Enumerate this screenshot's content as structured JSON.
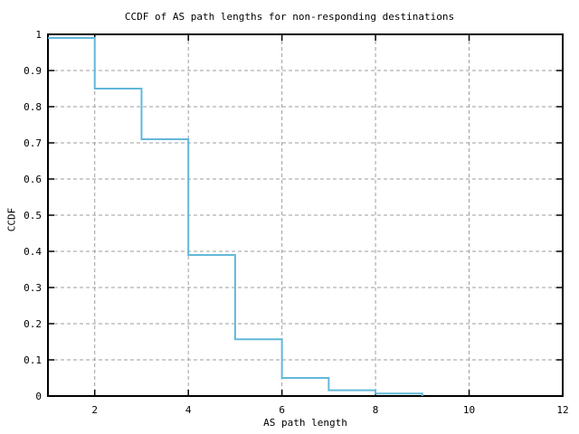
{
  "page": {
    "background_color": "#ffffff",
    "text_color": "#000000"
  },
  "chart_data": {
    "type": "line",
    "subtype": "step-ccdf",
    "title": "CCDF of AS path lengths for non-responding destinations",
    "xlabel": "AS path length",
    "ylabel": "CCDF",
    "xlim": [
      1,
      12
    ],
    "ylim": [
      0,
      1
    ],
    "xticks": [
      2,
      4,
      6,
      8,
      10,
      12
    ],
    "xtick_labels": [
      "2",
      "4",
      "6",
      "8",
      "10",
      "12"
    ],
    "yticks": [
      0,
      0.1,
      0.2,
      0.3,
      0.4,
      0.5,
      0.6,
      0.7,
      0.8,
      0.9,
      1
    ],
    "ytick_labels": [
      "0",
      "0.1",
      "0.2",
      "0.3",
      "0.4",
      "0.5",
      "0.6",
      "0.7",
      "0.8",
      "0.9",
      "1"
    ],
    "grid": true,
    "legend": "none",
    "x": [
      1,
      2,
      3,
      4,
      5,
      6,
      7,
      8,
      9
    ],
    "y": [
      0.99,
      0.85,
      0.71,
      0.39,
      0.157,
      0.05,
      0.016,
      0.007,
      0
    ],
    "line_color": "#63b8da",
    "grid_color": "#9e9e9e",
    "axis_color": "#000000"
  }
}
